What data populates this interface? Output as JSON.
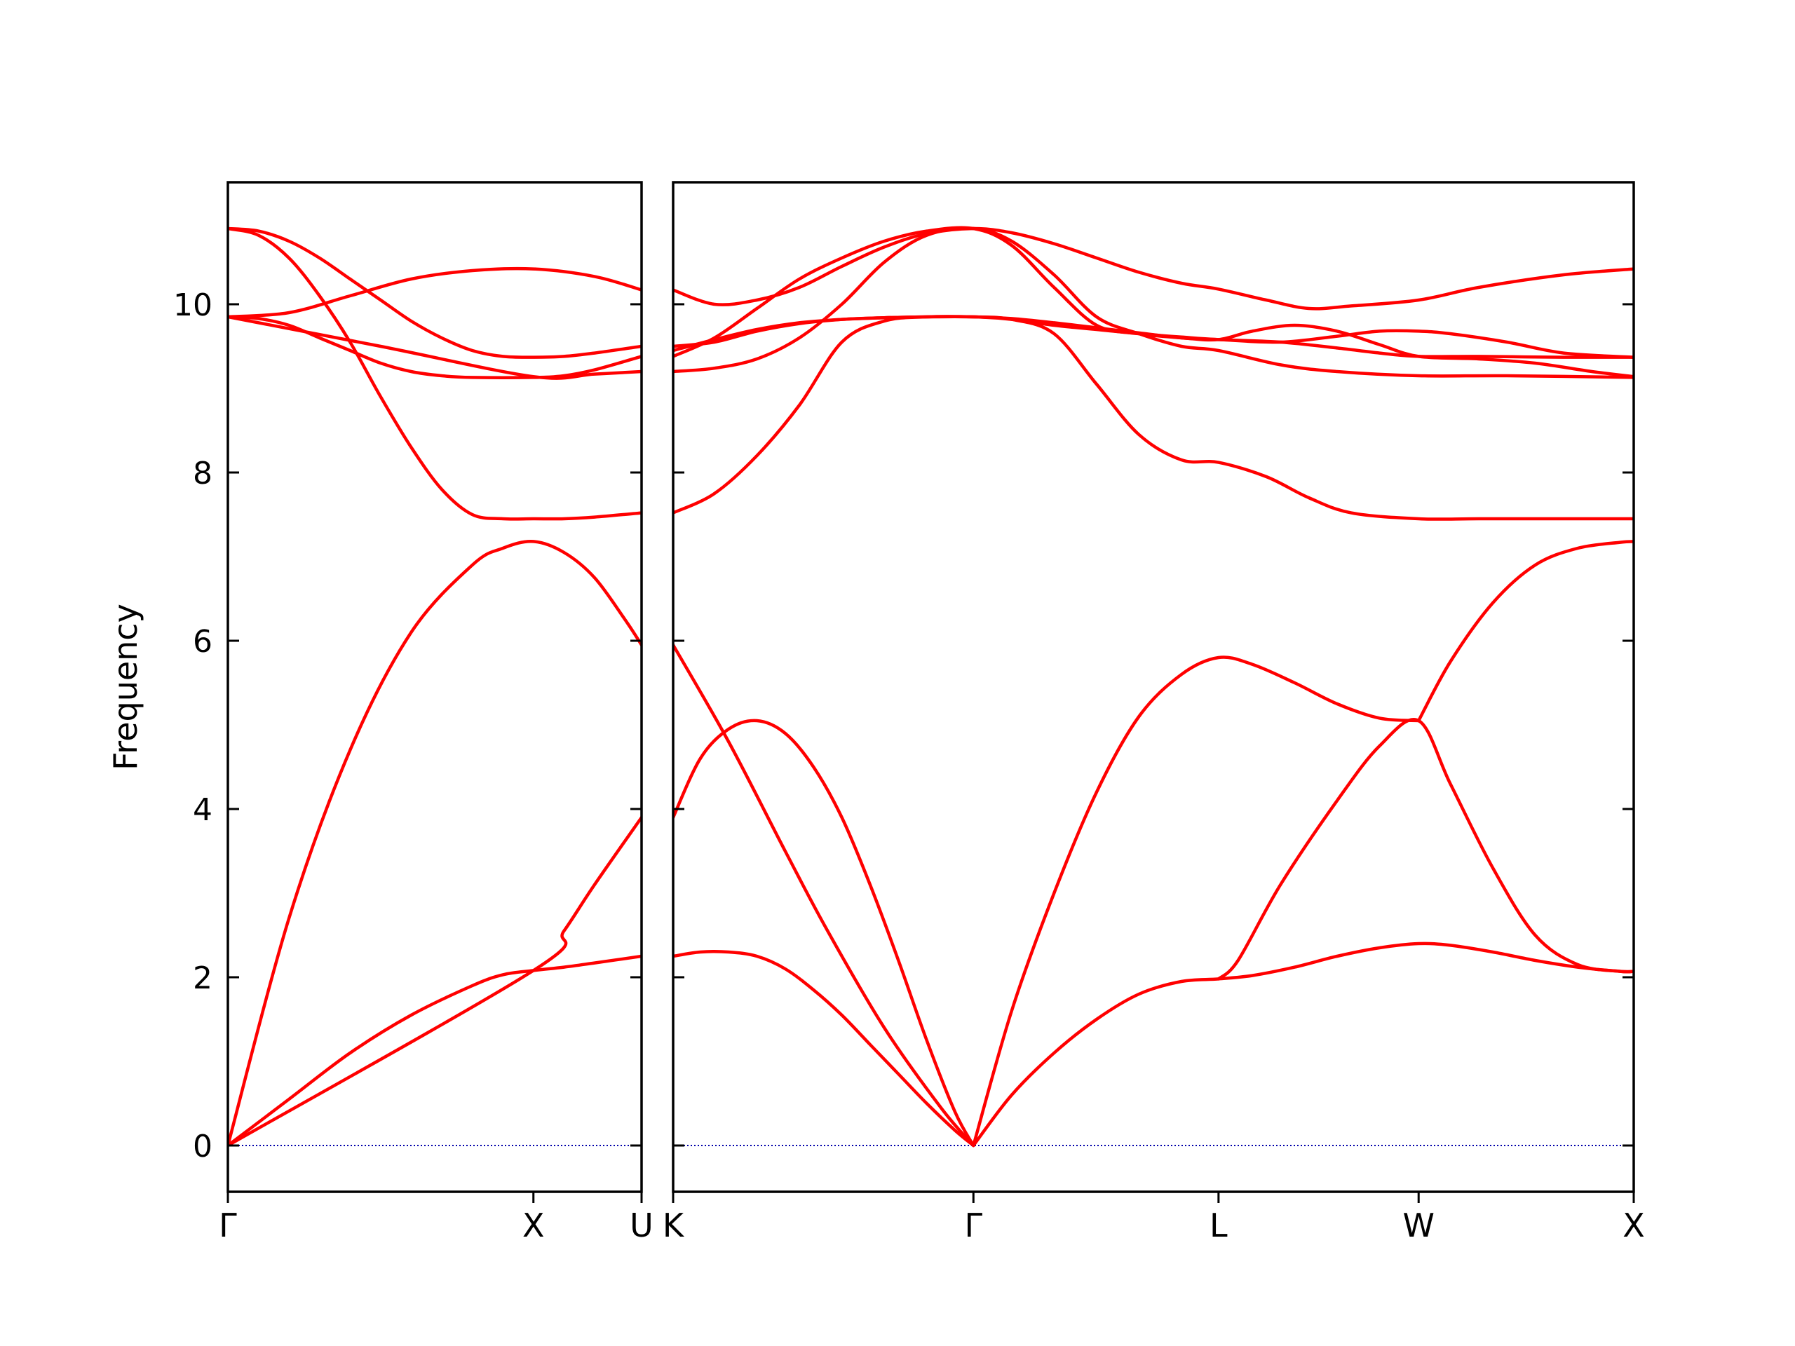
{
  "chart_data": {
    "type": "line",
    "ylabel": "Frequency",
    "ylim": [
      -0.55,
      11.45
    ],
    "y_ticks": [
      0,
      2,
      4,
      6,
      8,
      10
    ],
    "y_tick_labels": [
      "0",
      "2",
      "4",
      "6",
      "8",
      "10"
    ],
    "grid": false,
    "colors": {
      "bands": "#ff0000",
      "zero_line": "#0000aa",
      "axes": "#000000"
    },
    "panels": [
      {
        "name": "left-panel",
        "x_range": [
          0,
          1.354
        ],
        "x_ticks": [
          0,
          1.0,
          1.354
        ],
        "x_tick_labels": [
          "Γ",
          "X",
          "U"
        ],
        "bands": [
          {
            "x": [
              0,
              0.2,
              0.4,
              0.6,
              0.8,
              0.9,
              1.0,
              1.1,
              1.2,
              1.354
            ],
            "y": [
              0,
              0.55,
              1.1,
              1.55,
              1.9,
              2.03,
              2.08,
              2.12,
              2.17,
              2.25
            ]
          },
          {
            "x": [
              0,
              1.0,
              1.1,
              1.2,
              1.354
            ],
            "y": [
              0,
              2.08,
              2.55,
              3.1,
              3.9
            ]
          },
          {
            "x": [
              0,
              0.2,
              0.4,
              0.6,
              0.8,
              0.9,
              1.0,
              1.1,
              1.2,
              1.3,
              1.354
            ],
            "y": [
              0,
              2.7,
              4.7,
              6.1,
              6.9,
              7.1,
              7.18,
              7.05,
              6.75,
              6.25,
              5.95
            ]
          },
          {
            "x": [
              0,
              0.1,
              0.2,
              0.3,
              0.4,
              0.5,
              0.6,
              0.7,
              0.8,
              0.9,
              1.0,
              1.1,
              1.2,
              1.354
            ],
            "y": [
              10.9,
              10.82,
              10.55,
              10.1,
              9.55,
              8.9,
              8.3,
              7.8,
              7.5,
              7.45,
              7.45,
              7.45,
              7.47,
              7.52
            ]
          },
          {
            "x": [
              0,
              0.1,
              0.2,
              0.3,
              0.4,
              0.5,
              0.6,
              0.7,
              0.8,
              0.9,
              1.0,
              1.1,
              1.2,
              1.354
            ],
            "y": [
              10.9,
              10.87,
              10.75,
              10.55,
              10.3,
              10.05,
              9.8,
              9.6,
              9.45,
              9.38,
              9.37,
              9.38,
              9.42,
              9.5
            ]
          },
          {
            "x": [
              0,
              0.2,
              0.4,
              0.6,
              0.8,
              1.0,
              1.2,
              1.354
            ],
            "y": [
              9.85,
              9.9,
              10.1,
              10.3,
              10.4,
              10.42,
              10.33,
              10.17
            ]
          },
          {
            "x": [
              0,
              0.1,
              0.2,
              0.3,
              0.4,
              0.5,
              0.6,
              0.7,
              0.8,
              1.0,
              1.1,
              1.2,
              1.354
            ],
            "y": [
              9.85,
              9.83,
              9.75,
              9.6,
              9.45,
              9.3,
              9.2,
              9.15,
              9.13,
              9.13,
              9.15,
              9.22,
              9.38
            ]
          },
          {
            "x": [
              0,
              0.5,
              1.0,
              1.2,
              1.354
            ],
            "y": [
              9.85,
              9.5,
              9.14,
              9.17,
              9.2
            ]
          }
        ]
      },
      {
        "name": "right-panel",
        "x_range": [
          1.354,
          4.748
        ],
        "x_ticks": [
          1.354,
          2.415,
          3.281,
          3.988,
          4.748
        ],
        "x_tick_labels": [
          "K",
          "Γ",
          "L",
          "W",
          "X"
        ],
        "bands": [
          {
            "x": [
              1.354,
              1.55,
              1.75,
              1.9,
              2.1,
              2.3,
              2.415
            ],
            "y": [
              5.95,
              4.8,
              3.5,
              2.55,
              1.4,
              0.45,
              0
            ]
          },
          {
            "x": [
              1.354,
              1.45,
              1.55,
              1.65,
              1.75,
              1.85,
              1.95,
              2.05,
              2.15,
              2.25,
              2.35,
              2.415
            ],
            "y": [
              3.9,
              4.6,
              4.95,
              5.05,
              4.9,
              4.5,
              3.9,
              3.1,
              2.2,
              1.25,
              0.4,
              0
            ]
          },
          {
            "x": [
              1.354,
              1.45,
              1.55,
              1.65,
              1.75,
              1.85,
              1.95,
              2.05,
              2.15,
              2.25,
              2.35,
              2.415
            ],
            "y": [
              2.25,
              2.3,
              2.3,
              2.25,
              2.1,
              1.85,
              1.55,
              1.2,
              0.85,
              0.5,
              0.18,
              0
            ]
          },
          {
            "x": [
              2.415,
              2.55,
              2.7,
              2.85,
              3.0,
              3.15,
              3.281,
              3.4,
              3.55,
              3.7,
              3.85,
              3.988,
              4.1,
              4.25,
              4.4,
              4.55,
              4.7,
              4.748
            ],
            "y": [
              0,
              0.6,
              1.1,
              1.5,
              1.8,
              1.95,
              1.98,
              2.02,
              2.12,
              2.25,
              2.35,
              2.4,
              2.38,
              2.3,
              2.2,
              2.12,
              2.07,
              2.07
            ]
          },
          {
            "x": [
              2.415,
              2.55,
              2.7,
              2.85,
              3.0,
              3.15,
              3.281,
              3.4,
              3.55,
              3.7,
              3.85,
              3.988
            ],
            "y": [
              0,
              1.6,
              3.0,
              4.2,
              5.1,
              5.6,
              5.8,
              5.72,
              5.5,
              5.25,
              5.08,
              5.05
            ]
          },
          {
            "x": [
              3.281,
              3.35,
              3.5,
              3.7,
              3.85,
              3.988,
              4.1,
              4.25,
              4.4,
              4.55,
              4.7,
              4.748
            ],
            "y": [
              1.98,
              2.2,
              3.1,
              4.1,
              4.75,
              5.05,
              4.3,
              3.3,
              2.5,
              2.15,
              2.07,
              2.07
            ]
          },
          {
            "x": [
              3.988,
              4.1,
              4.25,
              4.4,
              4.55,
              4.7,
              4.748
            ],
            "y": [
              5.05,
              5.75,
              6.45,
              6.9,
              7.1,
              7.17,
              7.18
            ]
          },
          {
            "x": [
              1.354,
              1.5,
              1.65,
              1.8,
              1.95,
              2.1,
              2.25,
              2.415,
              2.55,
              2.7,
              2.85,
              3.0,
              3.15,
              3.281,
              3.45,
              3.6,
              3.75,
              3.988,
              4.2,
              4.5,
              4.748
            ],
            "y": [
              7.52,
              7.75,
              8.2,
              8.8,
              9.55,
              9.8,
              9.85,
              9.85,
              9.82,
              9.65,
              9.05,
              8.45,
              8.15,
              8.12,
              7.95,
              7.7,
              7.52,
              7.45,
              7.45,
              7.45,
              7.45
            ]
          },
          {
            "x": [
              1.354,
              1.5,
              1.65,
              1.8,
              1.95,
              2.1,
              2.25,
              2.415,
              2.55,
              2.7,
              2.85,
              3.0,
              3.15,
              3.281,
              3.5,
              3.7,
              3.988,
              4.3,
              4.748
            ],
            "y": [
              9.2,
              9.24,
              9.35,
              9.6,
              10.0,
              10.5,
              10.82,
              10.9,
              10.75,
              10.35,
              9.85,
              9.65,
              9.5,
              9.45,
              9.28,
              9.2,
              9.15,
              9.15,
              9.13
            ]
          },
          {
            "x": [
              1.354,
              1.5,
              1.65,
              1.8,
              1.95,
              2.1,
              2.25,
              2.415,
              2.55,
              2.7,
              2.85,
              3.0,
              3.15,
              3.281,
              3.45,
              3.6,
              3.75,
              3.988,
              4.2,
              4.5,
              4.748
            ],
            "y": [
              10.17,
              10.0,
              10.05,
              10.2,
              10.45,
              10.68,
              10.84,
              10.9,
              10.85,
              10.72,
              10.55,
              10.38,
              10.25,
              10.18,
              10.05,
              9.95,
              9.98,
              10.05,
              10.2,
              10.35,
              10.42
            ]
          },
          {
            "x": [
              1.354,
              1.5,
              1.65,
              1.8,
              1.95,
              2.1,
              2.25,
              2.415,
              2.55,
              2.7,
              2.85,
              3.0,
              3.15,
              3.281,
              3.4,
              3.55,
              3.7,
              3.85,
              3.988,
              4.2,
              4.4,
              4.6,
              4.748
            ],
            "y": [
              9.38,
              9.6,
              9.95,
              10.3,
              10.55,
              10.75,
              10.87,
              10.9,
              10.7,
              10.2,
              9.75,
              9.65,
              9.6,
              9.58,
              9.68,
              9.75,
              9.68,
              9.52,
              9.38,
              9.35,
              9.3,
              9.2,
              9.14
            ]
          },
          {
            "x": [
              1.354,
              1.5,
              1.65,
              1.8,
              1.95,
              2.1,
              2.25,
              2.415,
              2.55,
              2.7,
              2.85,
              3.0,
              3.15,
              3.281,
              3.5,
              3.7,
              3.85,
              3.988,
              4.2,
              4.5,
              4.748
            ],
            "y": [
              9.5,
              9.55,
              9.68,
              9.77,
              9.82,
              9.84,
              9.85,
              9.85,
              9.82,
              9.75,
              9.7,
              9.65,
              9.61,
              9.58,
              9.55,
              9.48,
              9.42,
              9.38,
              9.38,
              9.37,
              9.37
            ]
          },
          {
            "x": [
              1.354,
              1.5,
              1.65,
              1.8,
              1.95,
              2.1,
              2.25,
              2.415,
              2.55,
              2.7,
              2.85,
              3.0,
              3.15,
              3.281,
              3.5,
              3.7,
              3.85,
              3.988,
              4.1,
              4.3,
              4.5,
              4.748
            ],
            "y": [
              9.45,
              9.58,
              9.7,
              9.78,
              9.82,
              9.84,
              9.85,
              9.85,
              9.83,
              9.78,
              9.72,
              9.66,
              9.6,
              9.58,
              9.55,
              9.62,
              9.68,
              9.68,
              9.65,
              9.55,
              9.42,
              9.37
            ]
          }
        ]
      }
    ]
  }
}
